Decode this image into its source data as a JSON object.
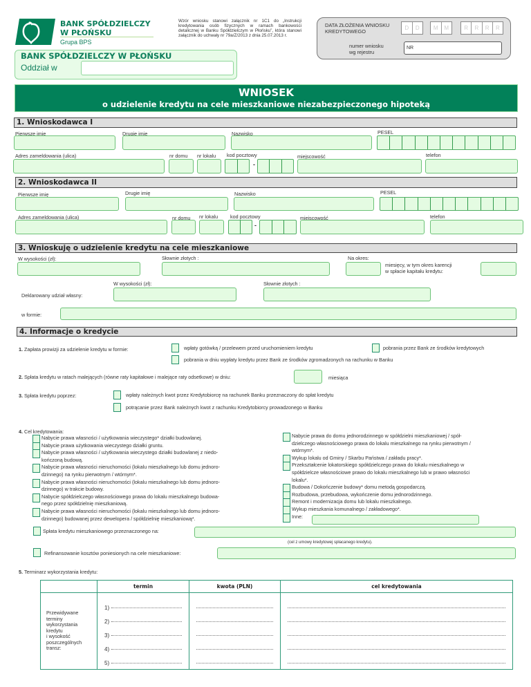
{
  "header": {
    "bank_line1": "BANK SPÓŁDZIELCZY",
    "bank_line2": "W PŁOŃSKU",
    "group": "Grupa BPS",
    "note": "Wzór wniosku stanowi załącznik nr 1C1 do „Instrukcji kredytowania osób fizycznych w ramach bankowości detalicznej w Banku Spółdzielczym w Płońsku”, która stanowi załącznik do uchwały nr 79a/Z/2013 z dnia 25.07.2013 r.",
    "date_label": "DATA ZŁOŻENIA WNIOSKU\nKREDYTOWEGO",
    "date_day": [
      "D",
      "D"
    ],
    "date_month": [
      "M",
      "M"
    ],
    "date_year": [
      "R",
      "R",
      "R",
      "R"
    ],
    "register_label": "numer wniosku\nwg rejestru",
    "register_value": "NR",
    "branch_bank": "BANK SPÓŁDZIELCZY W PŁOŃSKU",
    "branch_label": "Oddział w"
  },
  "title": {
    "main": "WNIOSEK",
    "subtitle": "o udzielenie kredytu na cele mieszkaniowe niezabezpieczonego hipoteką"
  },
  "s1": {
    "title": "1. Wnioskodawca I",
    "first_name": "Pierwsze imię",
    "second_name": "Drugie imię",
    "surname": "Nazwisko",
    "pesel": "PESEL",
    "address": "Adres zameldowania (ulica)",
    "house": "nr domu",
    "flat": "nr lokalu",
    "postal": "kod pocztowy",
    "city": "miejscowość",
    "phone": "telefon",
    "dash": "-"
  },
  "s2": {
    "title": "2. Wnioskodawca II",
    "first_name": "Pierwsze imię",
    "second_name": "Drugie imię",
    "surname": "Nazwisko",
    "pesel": "PESEL",
    "address": "Adres zameldowania (ulica)",
    "house": "nr domu",
    "flat": "nr lokalu",
    "postal": "kod pocztowy",
    "city": "miejscowość",
    "phone": "telefon",
    "dash": "-"
  },
  "s3": {
    "title": "3. Wnioskuję o udzielenie kredytu na cele mieszkaniowe",
    "amount": "W wysokości (zł):",
    "words": "Słownie złotych :",
    "period": "Na okres:",
    "months_grace": "miesięcy, w tym okres karencji\nw spłacie kapitału kredytu:",
    "own_amount": "W wysokości (zł):",
    "own_words": "Słownie złotych :",
    "own_label": "Deklarowany udział własny:",
    "form_label": "w formie:"
  },
  "s4": {
    "title": "4. Informacje o kredycie",
    "q1_num": "1.",
    "q1": "Zapłata prowizji za udzielenie kredytu w formie:",
    "q1_opt1": "wpłaty gotówką / przelewem przed uruchomieniem kredytu",
    "q1_opt2": "pobrania przez Bank ze środków kredytowych",
    "q1_opt3": "pobrania w dniu wypłaty kredytu przez Bank ze środków zgromadzonych na rachunku w Banku",
    "q2_num": "2.",
    "q2": "Spłata kredytu w ratach malejących (równe raty kapitałowe i malejące raty odsetkowe) w dniu:",
    "q2_suffix": "miesiąca",
    "q3_num": "3.",
    "q3": "Spłata kredytu poprzez:",
    "q3_opt1": "wpłaty należnych kwot przez Kredytobiorcę na rachunek Banku przeznaczony do spłat kredytu",
    "q3_opt2": "potrącanie przez Bank należnych kwot z rachunku Kredytobiorcy prowadzonego w Banku",
    "q4_num": "4.",
    "q4": "Cel kredytowania:",
    "purposes_left": [
      "Nabycie prawa własności / użytkowania wieczystego* działki budowlanej.",
      "Nabycie prawa użytkowania wieczystego działki gruntu.",
      "Nabycie prawa własności / użytkowania wieczystego działki budowlanej z niedo-\nkończoną budową.",
      "Nabycie prawa własności nieruchomości (lokalu mieszkalnego lub domu jednoro-\ndzinnego) na rynku pierwotnym / wtórnym*.",
      "Nabycie prawa własności nieruchomości (lokalu mieszkalnego lub domu jednoro-\ndzinnego) w trakcie budowy.",
      "Nabycie spółdzielczego własnościowego prawa do lokalu mieszkalnego budowa-\nnego przez spółdzielnię mieszkaniową.",
      "Nabycie prawa własności nieruchomości (lokalu mieszkalnego lub domu jednoro-\ndzinnego) budowanej przez dewelopera / spółdzielnię mieszkaniową*."
    ],
    "purposes_right": [
      "Nabycie prawa do domu jednorodzinnego w spółdzielni mieszkaniowej / spół-\ndzielczego własnościowego prawa do lokalu mieszkalnego na rynku pierwotnym /\nwtórnym*.",
      "Wykup lokalu od Gminy / Skarbu Państwa / zakładu pracy*.",
      "Przekształcenie lokatorskiego spółdzielczego prawa do lokalu mieszkalnego w\nspółdzielcze własnościowe prawo do lokalu mieszkalnego lub w prawo własności\nlokalu*.",
      "Budowa / Dokończenie budowy* domu metodą gospodarczą.",
      "Rozbudowa, przebudowa, wykończenie domu jednorodzinnego.",
      "Remont i modernizacja domu lub lokalu mieszkalnego.",
      "Wykup mieszkania komunalnego / zakładowego*.",
      "Inne:"
    ],
    "repayment": "Spłata kredytu mieszkaniowego przeznaczonego na:",
    "repayment_caption": "(cel z umowy kredytowej spłacanego kredytu).",
    "refinancing": "Refinansowanie kosztów poniesionych na cele mieszkaniowe:"
  },
  "s5": {
    "num": "5.",
    "title": "Terminarz wykorzystania kredytu:",
    "col_term": "termin",
    "col_amount": "kwota (PLN)",
    "col_purpose": "cel kredytowania",
    "row_label": "Przewidywane\nterminy\nwykorzystania\nkredytu\ni wysokość\nposzczególnych\ntransz:",
    "rows": [
      "1)",
      "2)",
      "3)",
      "4)",
      "5)"
    ]
  },
  "colors": {
    "brand_green": "#028159",
    "input_fill": "#e4fbe2",
    "input_border": "#6cc277",
    "section_grey": "#dedede"
  }
}
